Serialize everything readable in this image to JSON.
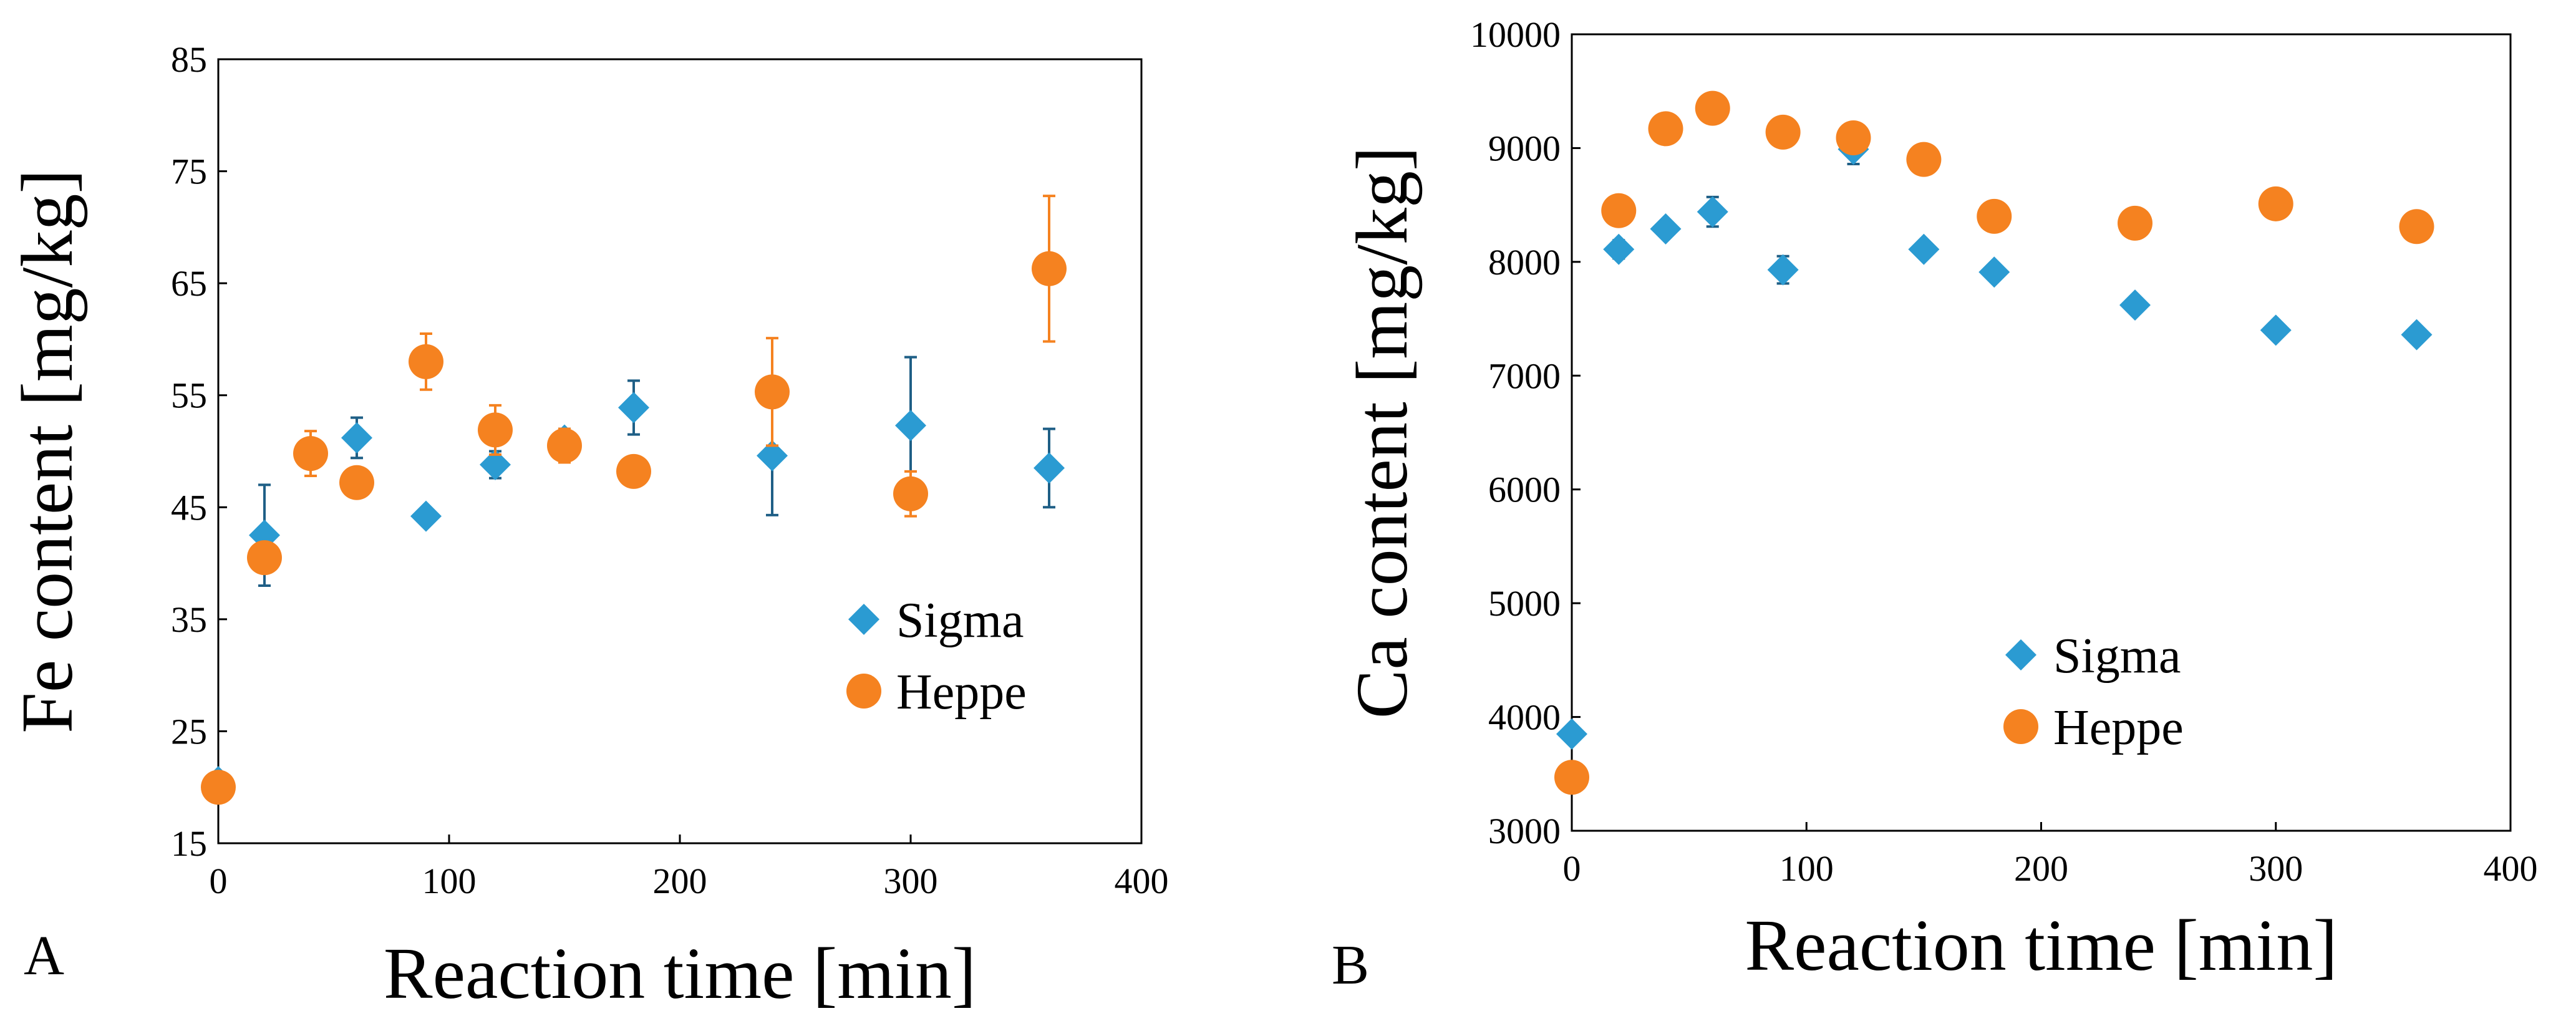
{
  "figure": {
    "panels": [
      "A",
      "B"
    ]
  },
  "colors": {
    "sigma": "#2B9BD2",
    "heppe": "#F58220",
    "sigma_err": "#1F5F86",
    "heppe_err": "#F58220",
    "axis": "#000000"
  },
  "chart_data": [
    {
      "type": "scatter",
      "panel_label": "A",
      "title": "",
      "xlabel": "Reaction time [min]",
      "ylabel": "Fe content [mg/kg]",
      "xlim": [
        0,
        400
      ],
      "ylim": [
        15,
        85
      ],
      "xticks": [
        0,
        100,
        200,
        300,
        400
      ],
      "yticks": [
        15,
        25,
        35,
        45,
        55,
        65,
        75,
        85
      ],
      "grid": false,
      "legend_position": "right-middle",
      "series": [
        {
          "name": "Sigma",
          "marker": "diamond",
          "color": "#2B9BD2",
          "points": [
            {
              "x": 0,
              "y": 20.5,
              "err": 0.5
            },
            {
              "x": 20,
              "y": 42.5,
              "err": 4.5
            },
            {
              "x": 40,
              "y": 49.5,
              "err": 1.0
            },
            {
              "x": 60,
              "y": 51.2,
              "err": 1.8
            },
            {
              "x": 90,
              "y": 44.2,
              "err": 0.5
            },
            {
              "x": 120,
              "y": 48.8,
              "err": 1.2
            },
            {
              "x": 150,
              "y": 51.0,
              "err": 1.0
            },
            {
              "x": 180,
              "y": 53.9,
              "err": 2.4
            },
            {
              "x": 240,
              "y": 49.6,
              "err": 5.3
            },
            {
              "x": 300,
              "y": 52.3,
              "err": 6.1
            },
            {
              "x": 360,
              "y": 48.5,
              "err": 3.5
            }
          ]
        },
        {
          "name": "Heppe",
          "marker": "circle",
          "color": "#F58220",
          "points": [
            {
              "x": 0,
              "y": 20.0,
              "err": 0.0
            },
            {
              "x": 20,
              "y": 40.5,
              "err": 0.0
            },
            {
              "x": 40,
              "y": 49.8,
              "err": 2.0
            },
            {
              "x": 60,
              "y": 47.2,
              "err": 0.0
            },
            {
              "x": 90,
              "y": 58.0,
              "err": 2.5
            },
            {
              "x": 120,
              "y": 51.9,
              "err": 2.2
            },
            {
              "x": 150,
              "y": 50.5,
              "err": 1.5
            },
            {
              "x": 180,
              "y": 48.2,
              "err": 0.0
            },
            {
              "x": 240,
              "y": 55.3,
              "err": 4.8
            },
            {
              "x": 300,
              "y": 46.2,
              "err": 2.0
            },
            {
              "x": 360,
              "y": 66.3,
              "err": 6.5
            }
          ]
        }
      ]
    },
    {
      "type": "scatter",
      "panel_label": "B",
      "title": "",
      "xlabel": "Reaction time [min]",
      "ylabel": "Ca content [mg/kg]",
      "xlim": [
        0,
        400
      ],
      "ylim": [
        3000,
        10000
      ],
      "xticks": [
        0,
        100,
        200,
        300,
        400
      ],
      "yticks": [
        3000,
        4000,
        5000,
        6000,
        7000,
        8000,
        9000,
        10000
      ],
      "grid": false,
      "legend_position": "center-left",
      "series": [
        {
          "name": "Sigma",
          "marker": "diamond",
          "color": "#2B9BD2",
          "points": [
            {
              "x": 0,
              "y": 3850,
              "err": 0
            },
            {
              "x": 20,
              "y": 8110,
              "err": 80
            },
            {
              "x": 40,
              "y": 8290,
              "err": 60
            },
            {
              "x": 60,
              "y": 8440,
              "err": 130
            },
            {
              "x": 90,
              "y": 7930,
              "err": 120
            },
            {
              "x": 120,
              "y": 8990,
              "err": 130
            },
            {
              "x": 150,
              "y": 8110,
              "err": 50
            },
            {
              "x": 180,
              "y": 7910,
              "err": 40
            },
            {
              "x": 240,
              "y": 7620,
              "err": 40
            },
            {
              "x": 300,
              "y": 7400,
              "err": 40
            },
            {
              "x": 360,
              "y": 7360,
              "err": 30
            }
          ]
        },
        {
          "name": "Heppe",
          "marker": "circle",
          "color": "#F58220",
          "points": [
            {
              "x": 0,
              "y": 3470,
              "err": 0
            },
            {
              "x": 20,
              "y": 8450,
              "err": 0
            },
            {
              "x": 40,
              "y": 9170,
              "err": 0
            },
            {
              "x": 60,
              "y": 9350,
              "err": 0
            },
            {
              "x": 90,
              "y": 9140,
              "err": 0
            },
            {
              "x": 120,
              "y": 9090,
              "err": 0
            },
            {
              "x": 150,
              "y": 8900,
              "err": 0
            },
            {
              "x": 180,
              "y": 8400,
              "err": 0
            },
            {
              "x": 240,
              "y": 8340,
              "err": 0
            },
            {
              "x": 300,
              "y": 8510,
              "err": 0
            },
            {
              "x": 360,
              "y": 8310,
              "err": 0
            }
          ]
        }
      ]
    }
  ]
}
